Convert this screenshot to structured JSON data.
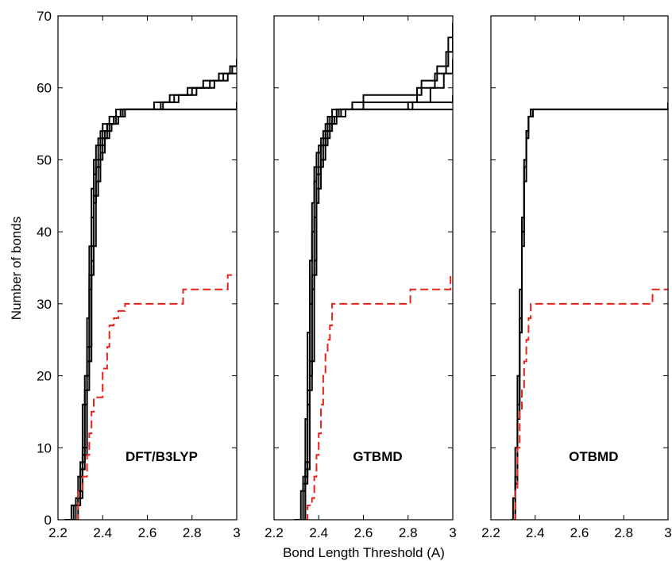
{
  "figure": {
    "xlabel": "Bond Length Threshold (A)",
    "ylabel": "Number of bonds"
  },
  "chart_data": [
    {
      "type": "line",
      "title": "",
      "panel_label": "DFT/B3LYP",
      "xlabel": "Bond Length Threshold (A)",
      "ylabel": "Number of bonds",
      "xlim": [
        2.2,
        3.0
      ],
      "ylim": [
        0,
        70
      ],
      "x_ticks": [
        "2.2",
        "2.4",
        "2.6",
        "2.8",
        "3"
      ],
      "y_ticks": [
        "0",
        "10",
        "20",
        "30",
        "40",
        "50",
        "60",
        "70"
      ],
      "legend": "none",
      "series": [
        {
          "style": "solid",
          "color": "#000000",
          "x": [
            2.23,
            2.26,
            2.29,
            2.31,
            2.33,
            2.34,
            2.35,
            2.36,
            2.38,
            2.4,
            2.43,
            2.46,
            2.5,
            2.65,
            2.85,
            3.0
          ],
          "y": [
            0,
            2,
            6,
            16,
            28,
            38,
            46,
            50,
            53,
            55,
            56,
            57,
            57,
            57,
            57,
            57
          ]
        },
        {
          "style": "solid",
          "color": "#000000",
          "x": [
            2.24,
            2.27,
            2.3,
            2.32,
            2.34,
            2.35,
            2.36,
            2.37,
            2.39,
            2.42,
            2.45,
            2.48,
            2.52,
            2.7,
            2.9,
            3.0
          ],
          "y": [
            0,
            2,
            7,
            18,
            32,
            42,
            48,
            52,
            54,
            55,
            56,
            57,
            57,
            57,
            57,
            58
          ]
        },
        {
          "style": "solid",
          "color": "#000000",
          "x": [
            2.24,
            2.28,
            2.3,
            2.32,
            2.34,
            2.36,
            2.37,
            2.39,
            2.41,
            2.44,
            2.47,
            2.5,
            2.6,
            2.66,
            2.72,
            2.8,
            2.9,
            2.96,
            3.0
          ],
          "y": [
            0,
            3,
            8,
            20,
            34,
            44,
            49,
            52,
            54,
            55,
            56,
            57,
            57,
            58,
            59,
            60,
            61,
            62,
            62
          ]
        },
        {
          "style": "solid",
          "color": "#000000",
          "x": [
            2.25,
            2.28,
            2.31,
            2.33,
            2.35,
            2.36,
            2.38,
            2.4,
            2.42,
            2.45,
            2.49,
            2.55,
            2.63,
            2.7,
            2.78,
            2.85,
            2.92,
            2.97,
            3.0
          ],
          "y": [
            0,
            3,
            9,
            22,
            36,
            45,
            50,
            53,
            55,
            56,
            57,
            57,
            58,
            59,
            60,
            61,
            62,
            63,
            63
          ]
        },
        {
          "style": "solid",
          "color": "#000000",
          "x": [
            2.25,
            2.29,
            2.31,
            2.33,
            2.35,
            2.37,
            2.39,
            2.41,
            2.43,
            2.46,
            2.5,
            2.58,
            2.67,
            2.74,
            2.82,
            2.88,
            2.94,
            2.98,
            3.0
          ],
          "y": [
            0,
            4,
            10,
            24,
            38,
            47,
            51,
            53,
            55,
            56,
            57,
            57,
            58,
            59,
            60,
            61,
            62,
            63,
            64
          ]
        },
        {
          "style": "dashed",
          "color": "#e8221b",
          "x": [
            2.28,
            2.29,
            2.31,
            2.33,
            2.34,
            2.35,
            2.36,
            2.38,
            2.4,
            2.42,
            2.43,
            2.45,
            2.47,
            2.5,
            2.76,
            2.96,
            3.0
          ],
          "y": [
            0,
            4,
            6,
            9,
            12,
            15,
            17,
            17,
            21,
            24,
            27,
            28,
            29,
            30,
            32,
            34,
            34
          ]
        }
      ]
    },
    {
      "type": "line",
      "title": "",
      "panel_label": "GTBMD",
      "xlabel": "Bond Length Threshold (A)",
      "ylabel": "Number of bonds",
      "xlim": [
        2.2,
        3.0
      ],
      "ylim": [
        0,
        70
      ],
      "x_ticks": [
        "2.2",
        "2.4",
        "2.6",
        "2.8",
        "3"
      ],
      "y_ticks": [],
      "legend": "none",
      "series": [
        {
          "style": "solid",
          "color": "#000000",
          "x": [
            2.29,
            2.32,
            2.34,
            2.35,
            2.36,
            2.37,
            2.38,
            2.4,
            2.42,
            2.44,
            2.46,
            2.5,
            2.7,
            2.9,
            3.0
          ],
          "y": [
            0,
            4,
            14,
            26,
            36,
            44,
            49,
            52,
            54,
            56,
            57,
            57,
            57,
            57,
            57
          ]
        },
        {
          "style": "solid",
          "color": "#000000",
          "x": [
            2.3,
            2.33,
            2.35,
            2.36,
            2.37,
            2.38,
            2.39,
            2.41,
            2.43,
            2.45,
            2.48,
            2.6,
            2.8,
            2.95,
            3.0
          ],
          "y": [
            0,
            5,
            16,
            30,
            40,
            47,
            51,
            53,
            55,
            56,
            57,
            57,
            58,
            58,
            59
          ]
        },
        {
          "style": "solid",
          "color": "#000000",
          "x": [
            2.3,
            2.33,
            2.35,
            2.37,
            2.38,
            2.39,
            2.41,
            2.43,
            2.45,
            2.48,
            2.52,
            2.7,
            2.82,
            2.9,
            2.96,
            3.0
          ],
          "y": [
            0,
            6,
            18,
            32,
            42,
            48,
            52,
            54,
            55,
            56,
            57,
            57,
            58,
            60,
            62,
            64
          ]
        },
        {
          "style": "solid",
          "color": "#000000",
          "x": [
            2.31,
            2.34,
            2.36,
            2.37,
            2.39,
            2.4,
            2.42,
            2.44,
            2.46,
            2.49,
            2.55,
            2.75,
            2.84,
            2.92,
            2.97,
            3.0
          ],
          "y": [
            0,
            7,
            20,
            34,
            44,
            49,
            52,
            54,
            56,
            57,
            58,
            58,
            60,
            62,
            65,
            67
          ]
        },
        {
          "style": "solid",
          "color": "#000000",
          "x": [
            2.31,
            2.34,
            2.36,
            2.38,
            2.39,
            2.41,
            2.43,
            2.45,
            2.47,
            2.5,
            2.6,
            2.78,
            2.86,
            2.93,
            2.98,
            3.0
          ],
          "y": [
            0,
            8,
            22,
            36,
            46,
            50,
            53,
            55,
            56,
            57,
            59,
            59,
            61,
            63,
            67,
            69
          ]
        },
        {
          "style": "dashed",
          "color": "#e8221b",
          "x": [
            2.34,
            2.35,
            2.37,
            2.38,
            2.39,
            2.4,
            2.41,
            2.42,
            2.43,
            2.44,
            2.45,
            2.46,
            2.81,
            2.99,
            3.0
          ],
          "y": [
            0,
            2,
            3,
            6,
            9,
            12,
            16,
            20,
            23,
            25,
            27,
            30,
            32,
            34,
            34
          ]
        }
      ]
    },
    {
      "type": "line",
      "title": "",
      "panel_label": "OTBMD",
      "xlabel": "Bond Length Threshold (A)",
      "ylabel": "Number of bonds",
      "xlim": [
        2.2,
        3.0
      ],
      "ylim": [
        0,
        70
      ],
      "x_ticks": [
        "2.2",
        "2.4",
        "2.6",
        "2.8",
        "3"
      ],
      "y_ticks": [],
      "legend": "none",
      "series": [
        {
          "style": "solid",
          "color": "#000000",
          "x": [
            2.29,
            2.3,
            2.31,
            2.32,
            2.33,
            2.34,
            2.35,
            2.36,
            2.37,
            2.38,
            3.0
          ],
          "y": [
            0,
            3,
            10,
            20,
            32,
            42,
            50,
            54,
            56,
            57,
            57
          ]
        },
        {
          "style": "solid",
          "color": "#000000",
          "x": [
            2.29,
            2.31,
            2.32,
            2.33,
            2.34,
            2.35,
            2.36,
            2.37,
            2.38,
            2.99,
            3.0
          ],
          "y": [
            0,
            5,
            14,
            26,
            38,
            47,
            53,
            56,
            57,
            57,
            58
          ]
        },
        {
          "style": "solid",
          "color": "#000000",
          "x": [
            2.3,
            2.31,
            2.32,
            2.33,
            2.34,
            2.35,
            2.36,
            2.37,
            2.39,
            3.0
          ],
          "y": [
            0,
            6,
            16,
            28,
            40,
            49,
            54,
            56,
            57,
            57
          ]
        },
        {
          "style": "dashed",
          "color": "#e8221b",
          "x": [
            2.3,
            2.31,
            2.32,
            2.33,
            2.34,
            2.35,
            2.36,
            2.37,
            2.38,
            2.93,
            2.97,
            3.0
          ],
          "y": [
            0,
            4,
            10,
            15,
            18,
            22,
            25,
            28,
            30,
            32,
            32,
            32
          ]
        }
      ]
    }
  ]
}
